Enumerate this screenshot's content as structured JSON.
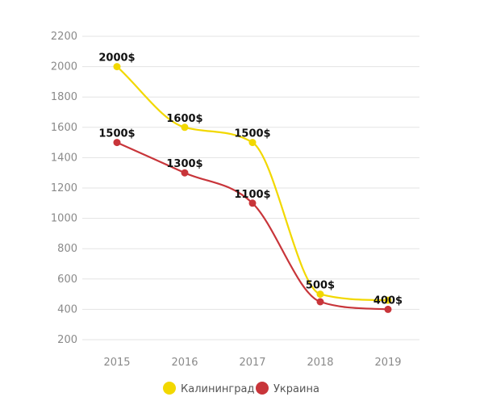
{
  "chart_data": {
    "type": "line",
    "categories": [
      "2015",
      "2016",
      "2017",
      "2018",
      "2019"
    ],
    "y_ticks": [
      "200",
      "400",
      "600",
      "800",
      "1000",
      "1200",
      "1400",
      "1600",
      "1800",
      "2000",
      "2200"
    ],
    "ylim": [
      200,
      2200
    ],
    "grid": true,
    "legend_position": "bottom",
    "series": [
      {
        "name": "Калининград",
        "color": "#f2d800",
        "values": [
          2000,
          1600,
          1500,
          500,
          460
        ],
        "labels": [
          "2000$",
          "1600$",
          "1500$",
          "500$",
          null
        ]
      },
      {
        "name": "Украина",
        "color": "#c8353a",
        "values": [
          1500,
          1300,
          1100,
          450,
          400
        ],
        "labels": [
          "1500$",
          "1300$",
          "1100$",
          null,
          "400$"
        ]
      }
    ]
  }
}
